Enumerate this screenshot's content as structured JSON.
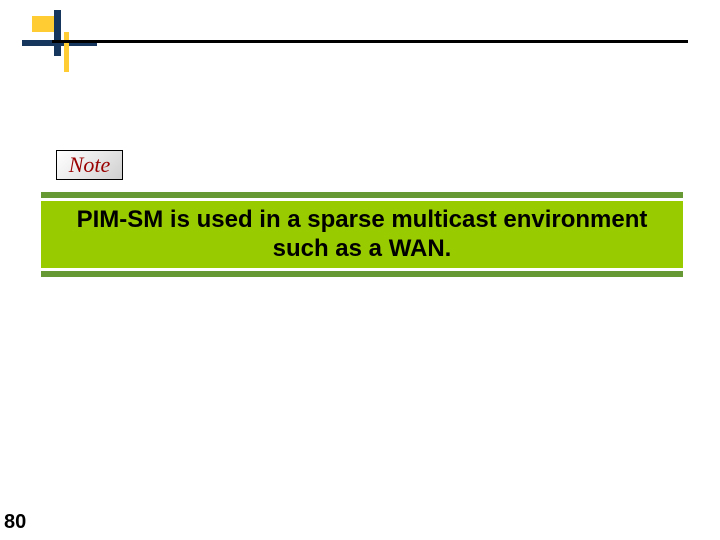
{
  "decor": {
    "colors": {
      "navy": "#17365d",
      "yellow": "#ffcc33",
      "rule": "#000000"
    }
  },
  "note": {
    "label": "Note",
    "label_color": "#9a0000",
    "label_font": "Times New Roman italic",
    "border_color": "#000000",
    "bg_gradient_from": "#ffffff",
    "bg_gradient_to": "#cfcfcf"
  },
  "highlight": {
    "text": "PIM-SM is used in a sparse multicast environment such as a WAN.",
    "band_color": "#99cc00",
    "border_band_color": "#669933",
    "text_color": "#000000",
    "font_size_pt": 24,
    "font_weight": "bold"
  },
  "page_number": "80"
}
